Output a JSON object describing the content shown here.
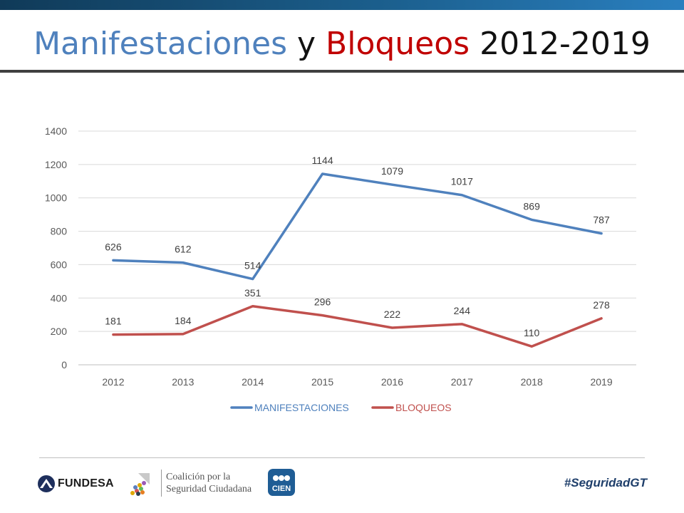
{
  "title": {
    "part1": "Manifestaciones",
    "part2": " y ",
    "part3": "Bloqueos",
    "part4": " 2012-2019"
  },
  "chart_data": {
    "type": "line",
    "title": "Manifestaciones y Bloqueos 2012-2019",
    "categories": [
      "2012",
      "2013",
      "2014",
      "2015",
      "2016",
      "2017",
      "2018",
      "2019"
    ],
    "series": [
      {
        "name": "MANIFESTACIONES",
        "color": "#4f81bd",
        "values": [
          626,
          612,
          514,
          1144,
          1079,
          1017,
          869,
          787
        ]
      },
      {
        "name": "BLOQUEOS",
        "color": "#c0504d",
        "values": [
          181,
          184,
          351,
          296,
          222,
          244,
          110,
          278
        ]
      }
    ],
    "ylim": [
      0,
      1400
    ],
    "yticks": [
      0,
      200,
      400,
      600,
      800,
      1000,
      1200,
      1400
    ],
    "grid": true,
    "legend": "bottom",
    "xlabel": "",
    "ylabel": ""
  },
  "footer": {
    "fundesa": "FUNDESA",
    "coalicion_line1": "Coalición por la",
    "coalicion_line2": "Seguridad Ciudadana",
    "cien": "CIEN",
    "hashtag": "#SeguridadGT"
  }
}
